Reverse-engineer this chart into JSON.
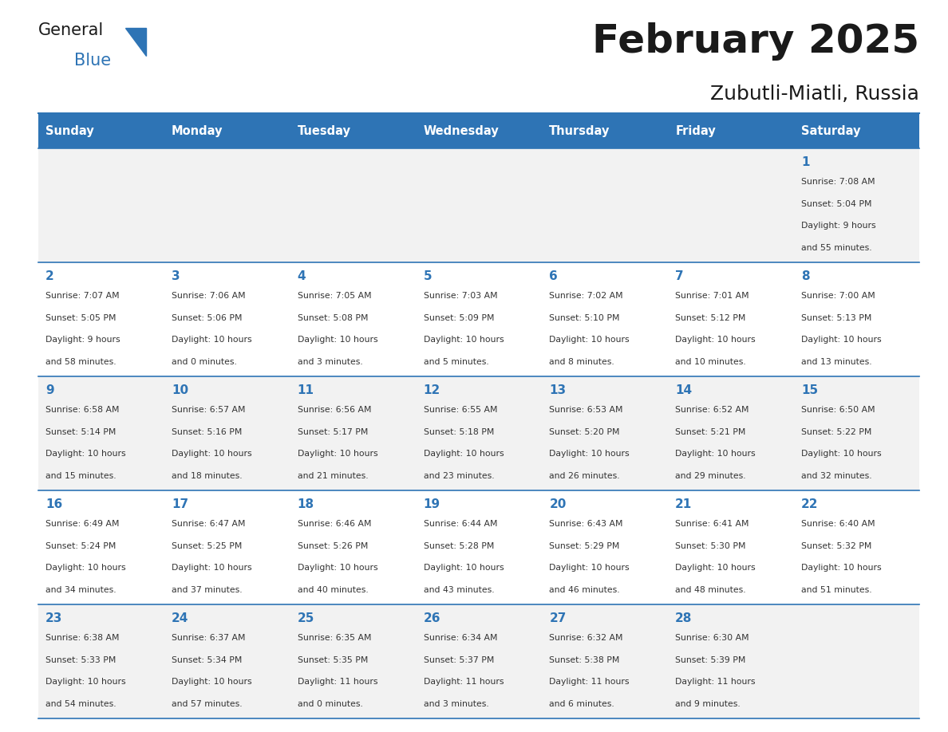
{
  "title": "February 2025",
  "subtitle": "Zubutli-Miatli, Russia",
  "days_of_week": [
    "Sunday",
    "Monday",
    "Tuesday",
    "Wednesday",
    "Thursday",
    "Friday",
    "Saturday"
  ],
  "header_bg": "#2E74B5",
  "header_text": "#FFFFFF",
  "odd_row_bg": "#F2F2F2",
  "even_row_bg": "#FFFFFF",
  "cell_border": "#2E74B5",
  "title_color": "#1a1a1a",
  "subtitle_color": "#1a1a1a",
  "day_number_color": "#2E74B5",
  "info_color": "#333333",
  "calendar_data": [
    [
      null,
      null,
      null,
      null,
      null,
      null,
      {
        "day": 1,
        "sunrise": "7:08 AM",
        "sunset": "5:04 PM",
        "daylight": "9 hours and 55 minutes."
      }
    ],
    [
      {
        "day": 2,
        "sunrise": "7:07 AM",
        "sunset": "5:05 PM",
        "daylight": "9 hours and 58 minutes."
      },
      {
        "day": 3,
        "sunrise": "7:06 AM",
        "sunset": "5:06 PM",
        "daylight": "10 hours and 0 minutes."
      },
      {
        "day": 4,
        "sunrise": "7:05 AM",
        "sunset": "5:08 PM",
        "daylight": "10 hours and 3 minutes."
      },
      {
        "day": 5,
        "sunrise": "7:03 AM",
        "sunset": "5:09 PM",
        "daylight": "10 hours and 5 minutes."
      },
      {
        "day": 6,
        "sunrise": "7:02 AM",
        "sunset": "5:10 PM",
        "daylight": "10 hours and 8 minutes."
      },
      {
        "day": 7,
        "sunrise": "7:01 AM",
        "sunset": "5:12 PM",
        "daylight": "10 hours and 10 minutes."
      },
      {
        "day": 8,
        "sunrise": "7:00 AM",
        "sunset": "5:13 PM",
        "daylight": "10 hours and 13 minutes."
      }
    ],
    [
      {
        "day": 9,
        "sunrise": "6:58 AM",
        "sunset": "5:14 PM",
        "daylight": "10 hours and 15 minutes."
      },
      {
        "day": 10,
        "sunrise": "6:57 AM",
        "sunset": "5:16 PM",
        "daylight": "10 hours and 18 minutes."
      },
      {
        "day": 11,
        "sunrise": "6:56 AM",
        "sunset": "5:17 PM",
        "daylight": "10 hours and 21 minutes."
      },
      {
        "day": 12,
        "sunrise": "6:55 AM",
        "sunset": "5:18 PM",
        "daylight": "10 hours and 23 minutes."
      },
      {
        "day": 13,
        "sunrise": "6:53 AM",
        "sunset": "5:20 PM",
        "daylight": "10 hours and 26 minutes."
      },
      {
        "day": 14,
        "sunrise": "6:52 AM",
        "sunset": "5:21 PM",
        "daylight": "10 hours and 29 minutes."
      },
      {
        "day": 15,
        "sunrise": "6:50 AM",
        "sunset": "5:22 PM",
        "daylight": "10 hours and 32 minutes."
      }
    ],
    [
      {
        "day": 16,
        "sunrise": "6:49 AM",
        "sunset": "5:24 PM",
        "daylight": "10 hours and 34 minutes."
      },
      {
        "day": 17,
        "sunrise": "6:47 AM",
        "sunset": "5:25 PM",
        "daylight": "10 hours and 37 minutes."
      },
      {
        "day": 18,
        "sunrise": "6:46 AM",
        "sunset": "5:26 PM",
        "daylight": "10 hours and 40 minutes."
      },
      {
        "day": 19,
        "sunrise": "6:44 AM",
        "sunset": "5:28 PM",
        "daylight": "10 hours and 43 minutes."
      },
      {
        "day": 20,
        "sunrise": "6:43 AM",
        "sunset": "5:29 PM",
        "daylight": "10 hours and 46 minutes."
      },
      {
        "day": 21,
        "sunrise": "6:41 AM",
        "sunset": "5:30 PM",
        "daylight": "10 hours and 48 minutes."
      },
      {
        "day": 22,
        "sunrise": "6:40 AM",
        "sunset": "5:32 PM",
        "daylight": "10 hours and 51 minutes."
      }
    ],
    [
      {
        "day": 23,
        "sunrise": "6:38 AM",
        "sunset": "5:33 PM",
        "daylight": "10 hours and 54 minutes."
      },
      {
        "day": 24,
        "sunrise": "6:37 AM",
        "sunset": "5:34 PM",
        "daylight": "10 hours and 57 minutes."
      },
      {
        "day": 25,
        "sunrise": "6:35 AM",
        "sunset": "5:35 PM",
        "daylight": "11 hours and 0 minutes."
      },
      {
        "day": 26,
        "sunrise": "6:34 AM",
        "sunset": "5:37 PM",
        "daylight": "11 hours and 3 minutes."
      },
      {
        "day": 27,
        "sunrise": "6:32 AM",
        "sunset": "5:38 PM",
        "daylight": "11 hours and 6 minutes."
      },
      {
        "day": 28,
        "sunrise": "6:30 AM",
        "sunset": "5:39 PM",
        "daylight": "11 hours and 9 minutes."
      },
      null
    ]
  ]
}
